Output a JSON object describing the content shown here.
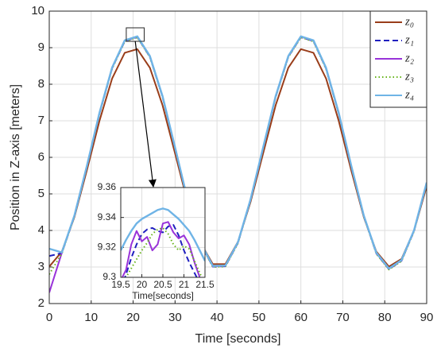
{
  "chart_data": [
    {
      "type": "line",
      "xlabel": "Time [seconds]",
      "ylabel": "Position in Z-axis [meters]",
      "xlim": [
        0,
        90
      ],
      "ylim": [
        2,
        10
      ],
      "xticks": [
        0,
        10,
        20,
        30,
        40,
        50,
        60,
        70,
        80,
        90
      ],
      "yticks": [
        2,
        3,
        4,
        5,
        6,
        7,
        8,
        9,
        10
      ],
      "grid": true,
      "legend": "upper right",
      "x": [
        0,
        3,
        6,
        9,
        12,
        15,
        18,
        21,
        24,
        27,
        30,
        33,
        36,
        39,
        42,
        45,
        48,
        51,
        54,
        57,
        60,
        63,
        66,
        69,
        72,
        75,
        78,
        81,
        84,
        87,
        90
      ],
      "series": [
        {
          "name": "z₀",
          "color": "#993d1a",
          "linestyle": "solid",
          "values": [
            3.01,
            3.42,
            4.37,
            5.66,
            7.01,
            8.16,
            8.86,
            8.96,
            8.45,
            7.43,
            6.11,
            4.77,
            3.68,
            3.08,
            3.08,
            3.69,
            4.78,
            6.11,
            7.43,
            8.45,
            8.96,
            8.86,
            8.16,
            7.01,
            5.65,
            4.37,
            3.42,
            3.01,
            3.22,
            4.0,
            5.21
          ]
        },
        {
          "name": "z₁",
          "color": "#1f1fbf",
          "linestyle": "dashed",
          "values": [
            3.3,
            3.38,
            4.39,
            5.76,
            7.21,
            8.44,
            9.18,
            9.29,
            8.75,
            7.66,
            6.25,
            4.82,
            3.66,
            3.01,
            3.02,
            3.66,
            4.83,
            6.25,
            7.66,
            8.75,
            9.29,
            9.18,
            8.43,
            7.21,
            5.76,
            4.39,
            3.37,
            2.94,
            3.17,
            3.99,
            5.29
          ]
        },
        {
          "name": "z₂",
          "color": "#9933d9",
          "linestyle": "solid",
          "values": [
            2.3,
            3.39,
            4.4,
            5.77,
            7.22,
            8.45,
            9.19,
            9.3,
            8.76,
            7.67,
            6.26,
            4.83,
            3.67,
            3.02,
            3.03,
            3.67,
            4.84,
            6.26,
            7.67,
            8.76,
            9.3,
            9.19,
            8.44,
            7.22,
            5.77,
            4.4,
            3.38,
            2.95,
            3.18,
            4.0,
            5.3
          ]
        },
        {
          "name": "z₃",
          "color": "#66b31a",
          "linestyle": "dotted",
          "values": [
            2.8,
            3.37,
            4.38,
            5.75,
            7.2,
            8.43,
            9.17,
            9.28,
            8.74,
            7.65,
            6.24,
            4.81,
            3.65,
            3.0,
            3.01,
            3.65,
            4.82,
            6.24,
            7.65,
            8.74,
            9.28,
            9.17,
            8.42,
            7.2,
            5.75,
            4.38,
            3.36,
            2.93,
            3.16,
            3.98,
            5.28
          ]
        },
        {
          "name": "z₄",
          "color": "#6fb4e6",
          "linestyle": "solid",
          "values": [
            3.5,
            3.4,
            4.41,
            5.78,
            7.23,
            8.46,
            9.2,
            9.31,
            8.77,
            7.68,
            6.27,
            4.84,
            3.68,
            3.03,
            3.04,
            3.68,
            4.85,
            6.27,
            7.68,
            8.77,
            9.31,
            9.2,
            8.45,
            7.23,
            5.78,
            4.41,
            3.39,
            2.96,
            3.19,
            4.01,
            5.31
          ]
        }
      ]
    },
    {
      "type": "line",
      "xlabel": "Time[seconds]",
      "xlim": [
        19.5,
        21.5
      ],
      "ylim": [
        9.3,
        9.36
      ],
      "xticks": [
        19.5,
        20,
        20.5,
        21,
        21.5
      ],
      "yticks": [
        9.3,
        9.32,
        9.34,
        9.36
      ],
      "grid": true,
      "x": [
        19.5,
        19.625,
        19.75,
        19.875,
        20,
        20.125,
        20.25,
        20.375,
        20.5,
        20.625,
        20.75,
        20.875,
        21,
        21.125,
        21.25,
        21.375,
        21.5
      ],
      "series": [
        {
          "color": "#1f1fbf",
          "linestyle": "dashed",
          "values": [
            9.292,
            9.302,
            9.313,
            9.322,
            9.329,
            9.332,
            9.333,
            9.331,
            9.33,
            9.334,
            9.335,
            9.328,
            9.318,
            9.31,
            9.303,
            9.296,
            9.289
          ]
        },
        {
          "color": "#9933d9",
          "linestyle": "solid",
          "values": [
            9.298,
            9.305,
            9.322,
            9.331,
            9.324,
            9.327,
            9.318,
            9.322,
            9.336,
            9.337,
            9.33,
            9.326,
            9.328,
            9.322,
            9.31,
            9.3,
            9.29
          ]
        },
        {
          "color": "#66b31a",
          "linestyle": "dotted",
          "values": [
            9.296,
            9.3,
            9.306,
            9.312,
            9.318,
            9.323,
            9.329,
            9.332,
            9.333,
            9.329,
            9.322,
            9.318,
            9.321,
            9.319,
            9.311,
            9.303,
            9.295
          ]
        },
        {
          "color": "#6fb4e6",
          "linestyle": "solid",
          "values": [
            9.318,
            9.325,
            9.331,
            9.336,
            9.339,
            9.341,
            9.343,
            9.345,
            9.346,
            9.345,
            9.342,
            9.339,
            9.335,
            9.331,
            9.325,
            9.318,
            9.311
          ]
        }
      ]
    }
  ]
}
